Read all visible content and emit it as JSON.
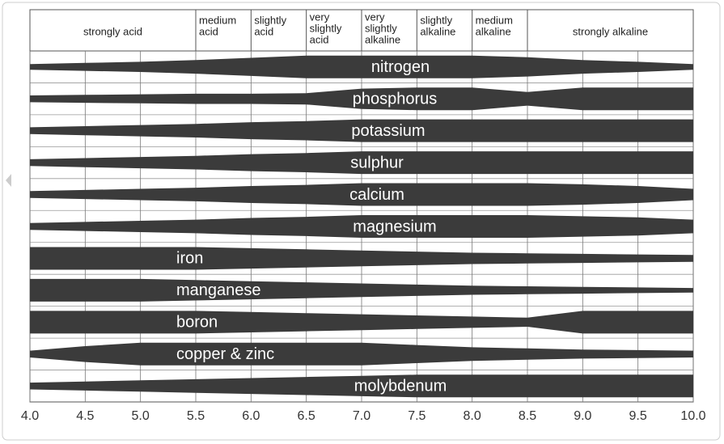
{
  "chart_data": {
    "type": "band",
    "zones": [
      {
        "lines": [
          "strongly acid"
        ],
        "from": 4,
        "to": 5.5
      },
      {
        "lines": [
          "medium",
          "acid"
        ],
        "from": 5.5,
        "to": 6
      },
      {
        "lines": [
          "slightly",
          "acid"
        ],
        "from": 6,
        "to": 6.5
      },
      {
        "lines": [
          "very",
          "slightly",
          "acid"
        ],
        "from": 6.5,
        "to": 7
      },
      {
        "lines": [
          "very",
          "slightly",
          "alkaline"
        ],
        "from": 7,
        "to": 7.5
      },
      {
        "lines": [
          "slightly",
          "alkaline"
        ],
        "from": 7.5,
        "to": 8
      },
      {
        "lines": [
          "medium",
          "alkaline"
        ],
        "from": 8,
        "to": 8.5
      },
      {
        "lines": [
          "strongly alkaline"
        ],
        "from": 8.5,
        "to": 10
      }
    ],
    "x": [
      4,
      4.5,
      5,
      5.5,
      6,
      6.5,
      7,
      7.5,
      8,
      8.5,
      9,
      9.5,
      10
    ],
    "xlim": [
      4,
      10
    ],
    "xticks": [
      {
        "value": 4,
        "label": "4.0"
      },
      4.5,
      {
        "value": 5,
        "label": "5.0"
      },
      5.5,
      {
        "value": 6,
        "label": "6.0"
      },
      6.5,
      {
        "value": 7,
        "label": "7.0"
      },
      7.5,
      {
        "value": 8,
        "label": "8.0"
      },
      8.5,
      {
        "value": 9,
        "label": "9.0"
      },
      9.5,
      {
        "value": 10,
        "label": "10.0"
      }
    ],
    "grid": true,
    "color": "#3b3b3b",
    "series": [
      {
        "name": "nitrogen",
        "values": [
          0.25,
          0.35,
          0.45,
          0.6,
          0.8,
          1,
          1,
          1,
          1,
          0.85,
          0.6,
          0.45,
          0.25
        ]
      },
      {
        "name": "phosphorus",
        "values": [
          0.3,
          0.35,
          0.4,
          0.45,
          0.45,
          0.5,
          0.9,
          1,
          1,
          0.6,
          1,
          1,
          1
        ]
      },
      {
        "name": "potassium",
        "values": [
          0.3,
          0.4,
          0.5,
          0.6,
          0.75,
          0.85,
          1,
          1,
          1,
          1,
          1,
          1,
          1
        ]
      },
      {
        "name": "sulphur",
        "values": [
          0.3,
          0.4,
          0.5,
          0.6,
          0.75,
          0.85,
          1,
          1,
          1,
          1,
          1,
          1,
          1
        ]
      },
      {
        "name": "calcium",
        "values": [
          0.3,
          0.4,
          0.5,
          0.6,
          0.75,
          0.85,
          1,
          1,
          1,
          1,
          0.9,
          0.75,
          0.5
        ]
      },
      {
        "name": "magnesium",
        "values": [
          0.3,
          0.4,
          0.5,
          0.6,
          0.75,
          0.85,
          1,
          1,
          1,
          1,
          0.9,
          0.8,
          0.6
        ]
      },
      {
        "name": "iron",
        "values": [
          1,
          1,
          1,
          1,
          0.9,
          0.8,
          0.7,
          0.6,
          0.5,
          0.45,
          0.4,
          0.35,
          0.3
        ]
      },
      {
        "name": "manganese",
        "values": [
          1,
          1,
          1,
          0.9,
          0.8,
          0.7,
          0.6,
          0.5,
          0.4,
          0.35,
          0.3,
          0.25,
          0.2
        ]
      },
      {
        "name": "boron",
        "values": [
          1,
          1,
          1,
          1,
          0.9,
          0.8,
          0.7,
          0.6,
          0.5,
          0.4,
          1,
          1,
          1
        ]
      },
      {
        "name": "copper & zinc",
        "values": [
          0.3,
          0.7,
          1,
          1,
          1,
          1,
          1,
          0.8,
          0.6,
          0.5,
          0.4,
          0.35,
          0.3
        ]
      },
      {
        "name": "molybdenum",
        "values": [
          0.3,
          0.4,
          0.5,
          0.6,
          0.7,
          0.8,
          0.9,
          1,
          1,
          1,
          1,
          1,
          1
        ]
      }
    ]
  }
}
